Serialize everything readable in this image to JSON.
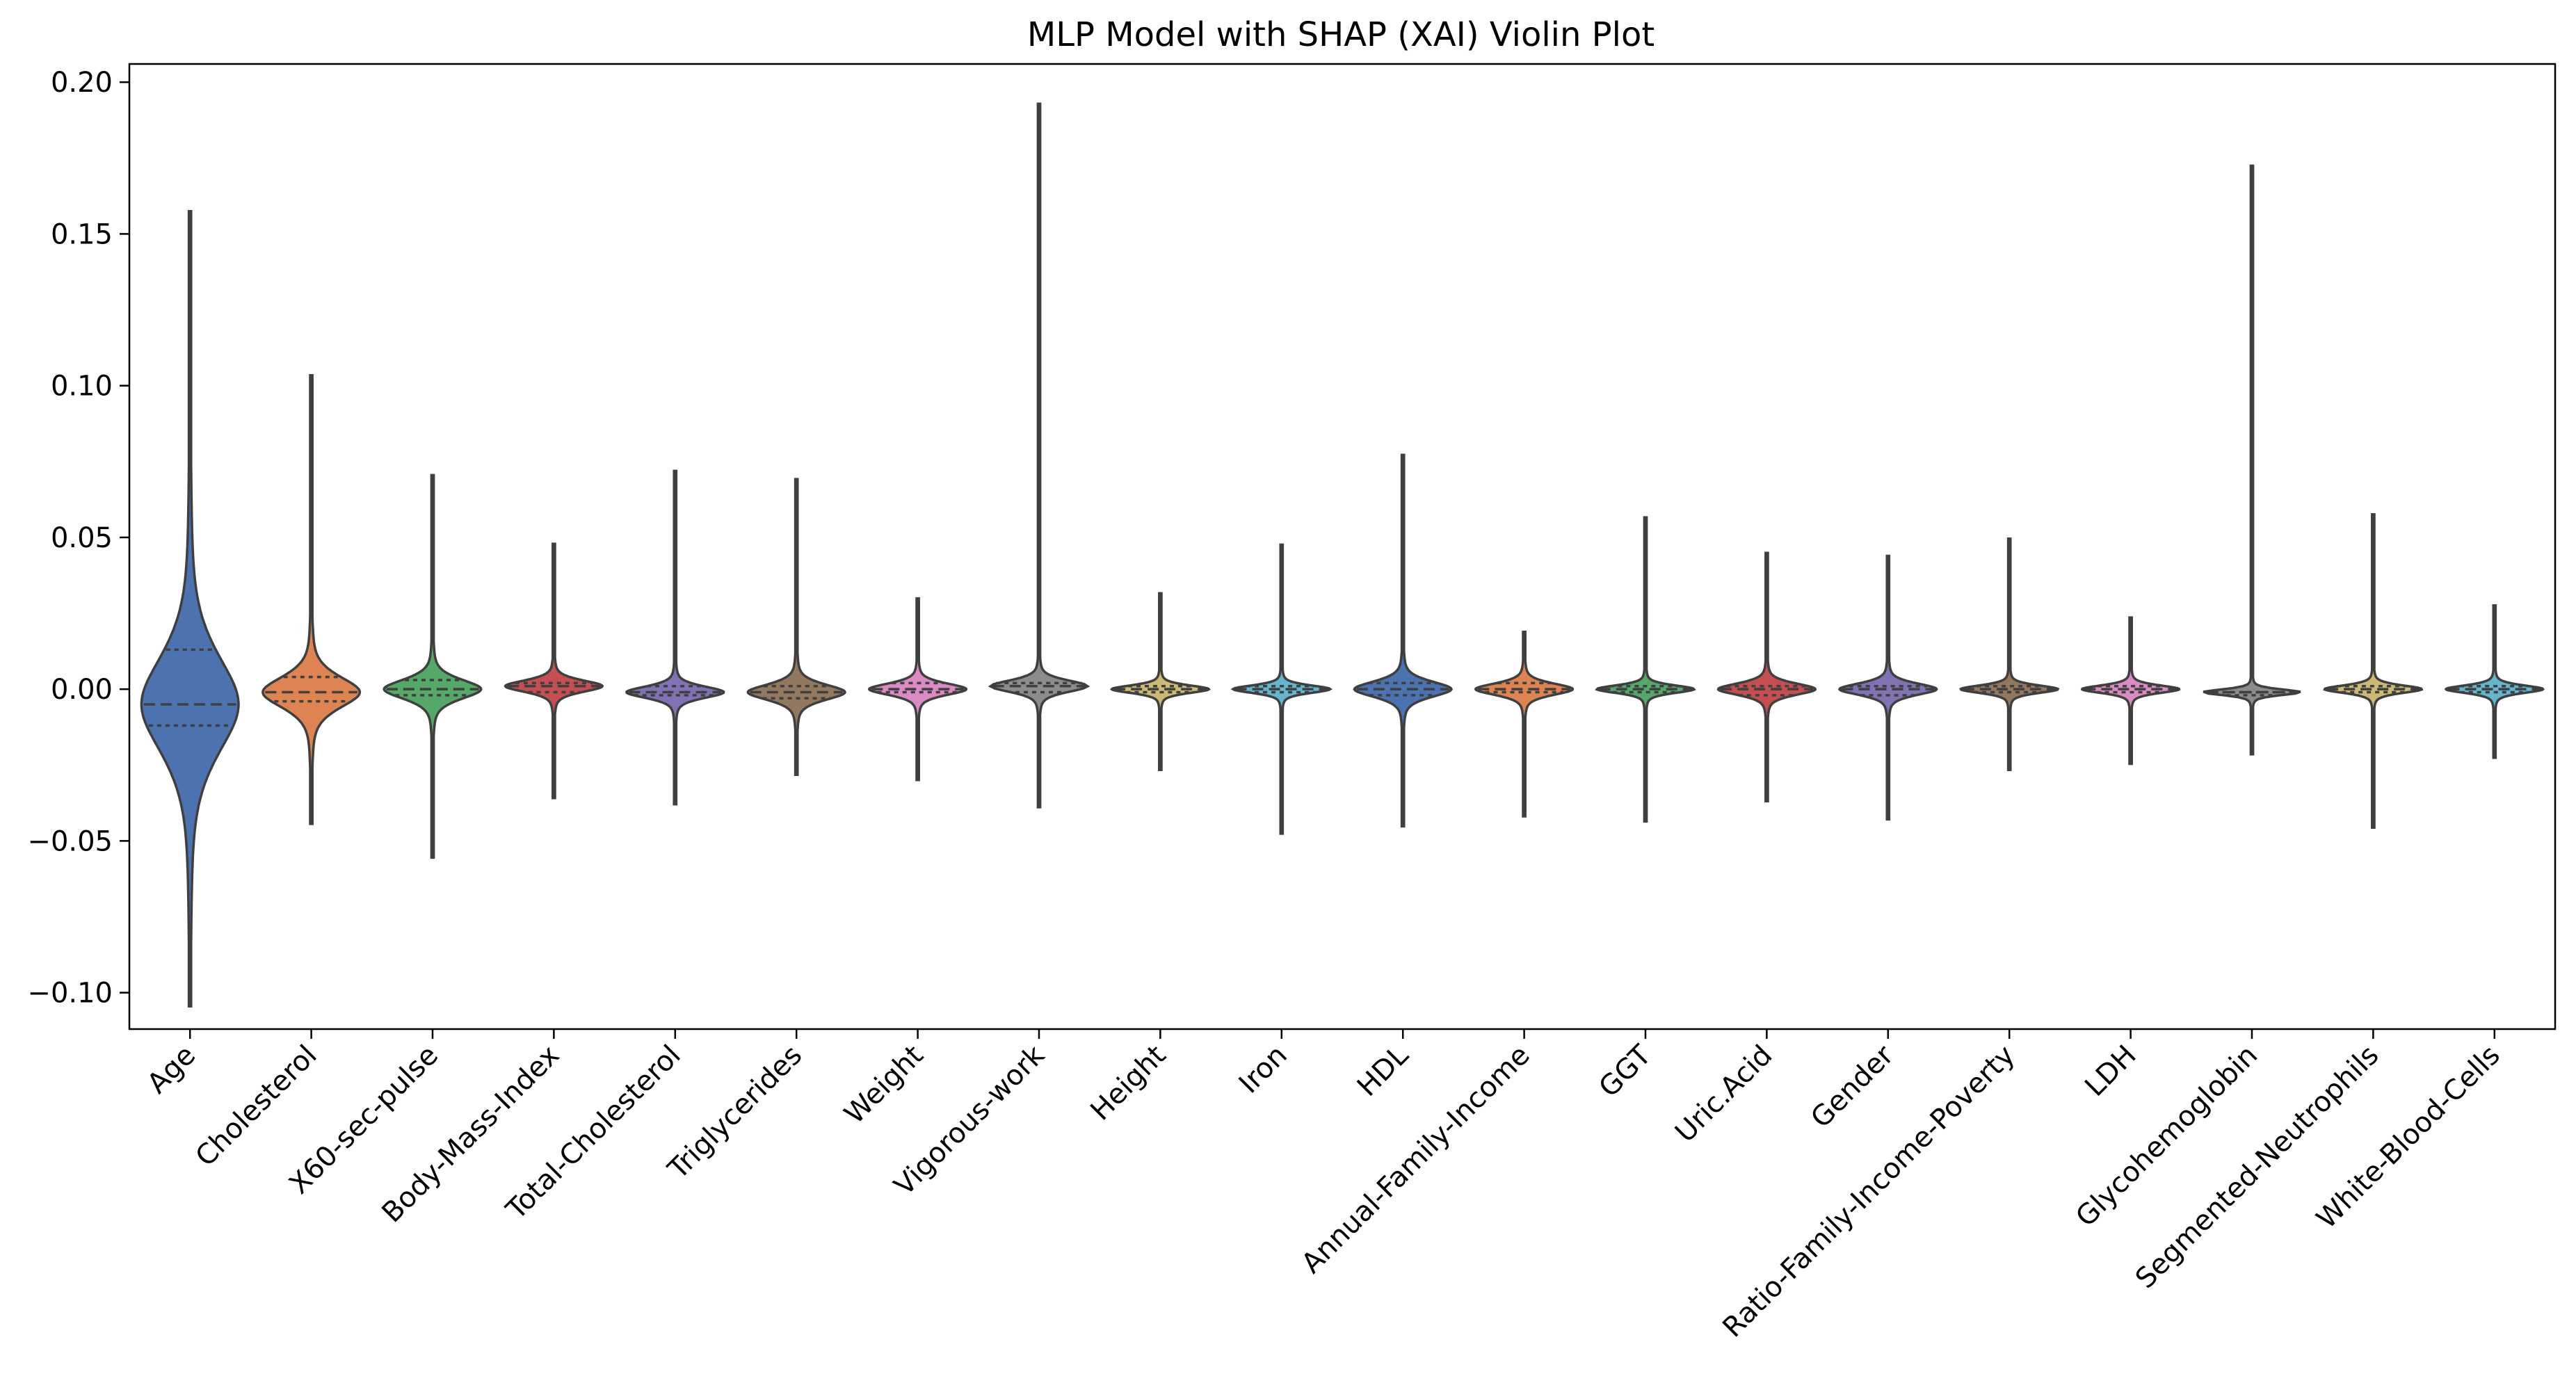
{
  "chart_data": {
    "type": "violin",
    "title": "MLP Model with SHAP (XAI) Violin Plot",
    "xlabel": "",
    "ylabel": "",
    "ylim": [
      -0.112,
      0.206
    ],
    "yticks": [
      -0.1,
      -0.05,
      0.0,
      0.05,
      0.1,
      0.15,
      0.2
    ],
    "ytick_labels": [
      "−0.10",
      "−0.05",
      "0.00",
      "0.05",
      "0.10",
      "0.15",
      "0.20"
    ],
    "grid": false,
    "legend": "none",
    "inner": "quartile",
    "categories": [
      "Age",
      "Cholesterol",
      "X60-sec-pulse",
      "Body-Mass-Index",
      "Total-Cholesterol",
      "Triglycerides",
      "Weight",
      "Vigorous-work",
      "Height",
      "Iron",
      "HDL",
      "Annual-Family-Income",
      "GGT",
      "Uric.Acid",
      "Gender",
      "Ratio-Family-Income-Poverty",
      "LDH",
      "Glycohemoglobin",
      "Segmented-Neutrophils",
      "White-Blood-Cells"
    ],
    "series": [
      {
        "category": "Age",
        "color": "#4C72B0",
        "min": -0.097,
        "q1": -0.012,
        "median": -0.005,
        "q3": 0.013,
        "max": 0.15
      },
      {
        "category": "Cholesterol",
        "color": "#DD8452",
        "min": -0.042,
        "q1": -0.004,
        "median": -0.001,
        "q3": 0.004,
        "max": 0.101
      },
      {
        "category": "X60-sec-pulse",
        "color": "#55A868",
        "min": -0.054,
        "q1": -0.002,
        "median": 0.0,
        "q3": 0.003,
        "max": 0.069
      },
      {
        "category": "Body-Mass-Index",
        "color": "#C44E52",
        "min": -0.035,
        "q1": -0.001,
        "median": 0.001,
        "q3": 0.002,
        "max": 0.047
      },
      {
        "category": "Total-Cholesterol",
        "color": "#8172B3",
        "min": -0.037,
        "q1": -0.002,
        "median": -0.001,
        "q3": 0.001,
        "max": 0.071
      },
      {
        "category": "Triglycerides",
        "color": "#937860",
        "min": -0.027,
        "q1": -0.003,
        "median": -0.001,
        "q3": 0.001,
        "max": 0.068
      },
      {
        "category": "Weight",
        "color": "#DA8BC3",
        "min": -0.029,
        "q1": -0.001,
        "median": 0.0,
        "q3": 0.002,
        "max": 0.029
      },
      {
        "category": "Vigorous-work",
        "color": "#8C8C8C",
        "min": -0.038,
        "q1": -0.001,
        "median": 0.001,
        "q3": 0.002,
        "max": 0.192
      },
      {
        "category": "Height",
        "color": "#CCB974",
        "min": -0.026,
        "q1": -0.001,
        "median": 0.0,
        "q3": 0.001,
        "max": 0.031
      },
      {
        "category": "Iron",
        "color": "#64B5CD",
        "min": -0.047,
        "q1": -0.001,
        "median": 0.0,
        "q3": 0.001,
        "max": 0.047
      },
      {
        "category": "HDL",
        "color": "#4C72B0",
        "min": -0.044,
        "q1": -0.002,
        "median": 0.0,
        "q3": 0.002,
        "max": 0.076
      },
      {
        "category": "Annual-Family-Income",
        "color": "#DD8452",
        "min": -0.041,
        "q1": -0.001,
        "median": 0.0,
        "q3": 0.002,
        "max": 0.018
      },
      {
        "category": "GGT",
        "color": "#55A868",
        "min": -0.043,
        "q1": -0.001,
        "median": 0.0,
        "q3": 0.001,
        "max": 0.056
      },
      {
        "category": "Uric.Acid",
        "color": "#C44E52",
        "min": -0.036,
        "q1": -0.002,
        "median": 0.0,
        "q3": 0.001,
        "max": 0.044
      },
      {
        "category": "Gender",
        "color": "#8172B3",
        "min": -0.042,
        "q1": -0.002,
        "median": 0.0,
        "q3": 0.001,
        "max": 0.043
      },
      {
        "category": "Ratio-Family-Income-Poverty",
        "color": "#937860",
        "min": -0.026,
        "q1": -0.001,
        "median": 0.0,
        "q3": 0.001,
        "max": 0.049
      },
      {
        "category": "LDH",
        "color": "#DA8BC3",
        "min": -0.024,
        "q1": -0.001,
        "median": 0.0,
        "q3": 0.001,
        "max": 0.023
      },
      {
        "category": "Glycohemoglobin",
        "color": "#8C8C8C",
        "min": -0.021,
        "q1": -0.002,
        "median": -0.001,
        "q3": -0.001,
        "max": 0.172
      },
      {
        "category": "Segmented-Neutrophils",
        "color": "#CCB974",
        "min": -0.045,
        "q1": -0.001,
        "median": 0.0,
        "q3": 0.001,
        "max": 0.057
      },
      {
        "category": "White-Blood-Cells",
        "color": "#64B5CD",
        "min": -0.022,
        "q1": -0.001,
        "median": 0.0,
        "q3": 0.001,
        "max": 0.027
      }
    ]
  }
}
